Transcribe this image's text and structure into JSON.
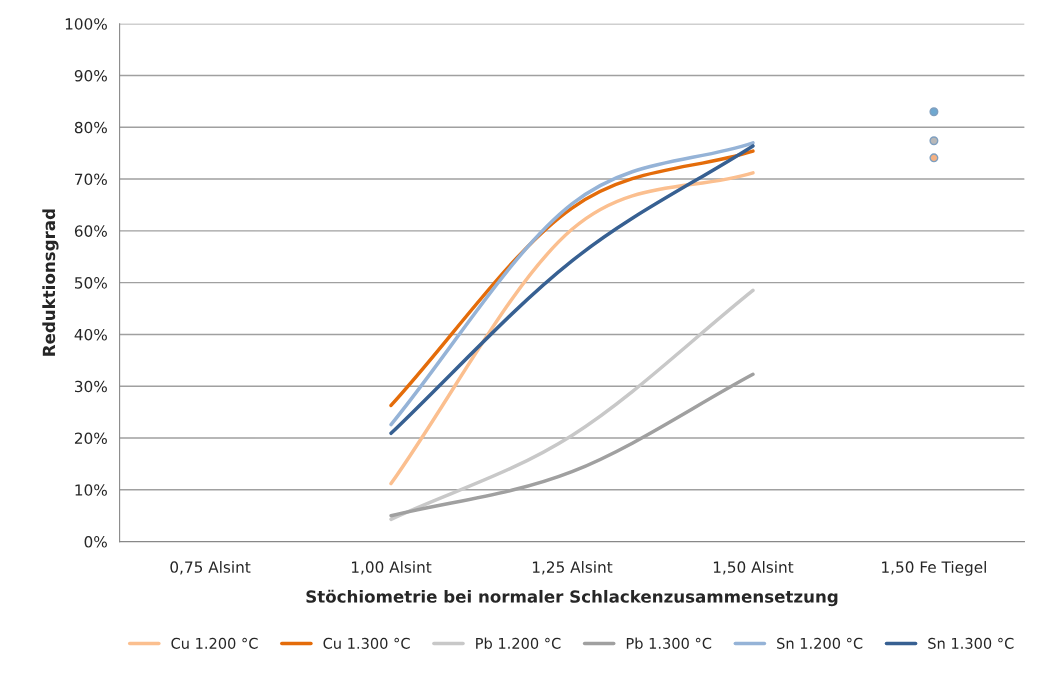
{
  "chart_data": {
    "type": "line",
    "xlabel": "Stöchiometrie bei normaler Schlackenzusammensetzung",
    "ylabel": "Reduktionsgrad",
    "categories": [
      "0,75 Alsint",
      "1,00 Alsint",
      "1,25 Alsint",
      "1,50 Alsint",
      "1,50 Fe Tiegel"
    ],
    "series": [
      {
        "name": "Cu 1.200 °C",
        "color": "#fbbf8f",
        "values": [
          null,
          11.2,
          60.3,
          71.2,
          null
        ]
      },
      {
        "name": "Cu 1.300 °C",
        "color": "#e46c0a",
        "values": [
          null,
          26.3,
          64.4,
          75.4,
          null
        ]
      },
      {
        "name": "Pb 1.200 °C",
        "color": "#c8c8c8",
        "values": [
          null,
          4.3,
          20.5,
          48.5,
          null
        ]
      },
      {
        "name": "Pb 1.300 °C",
        "color": "#a0a0a0",
        "values": [
          null,
          5.0,
          13.5,
          32.3,
          null
        ]
      },
      {
        "name": "Sn 1.200 °C",
        "color": "#95b3d7",
        "values": [
          null,
          22.6,
          65.2,
          77.0,
          null
        ]
      },
      {
        "name": "Sn 1.300 °C",
        "color": "#376092",
        "values": [
          null,
          20.9,
          54.2,
          76.4,
          null
        ]
      },
      {
        "type": "scatter",
        "color": "#6fa8d0",
        "values": [
          null,
          null,
          null,
          null,
          83.0
        ]
      },
      {
        "type": "scatter",
        "color": "#b8b8b8",
        "values": [
          null,
          null,
          null,
          null,
          77.4
        ]
      },
      {
        "type": "scatter",
        "color": "#f4b183",
        "values": [
          null,
          null,
          null,
          null,
          74.1
        ]
      }
    ],
    "ylim": [
      0,
      100
    ],
    "yticks": [
      {
        "value": 0,
        "label": "0%"
      },
      {
        "value": 10,
        "label": "10%"
      },
      {
        "value": 20,
        "label": "20%"
      },
      {
        "value": 30,
        "label": "30%"
      },
      {
        "value": 40,
        "label": "40%"
      },
      {
        "value": 50,
        "label": "50%"
      },
      {
        "value": 60,
        "label": "60%"
      },
      {
        "value": 70,
        "label": "70%"
      },
      {
        "value": 80,
        "label": "80%"
      },
      {
        "value": 90,
        "label": "90%"
      },
      {
        "value": 100,
        "label": "100%"
      }
    ],
    "grid": "y",
    "legend": "bottom",
    "marker": "none"
  }
}
